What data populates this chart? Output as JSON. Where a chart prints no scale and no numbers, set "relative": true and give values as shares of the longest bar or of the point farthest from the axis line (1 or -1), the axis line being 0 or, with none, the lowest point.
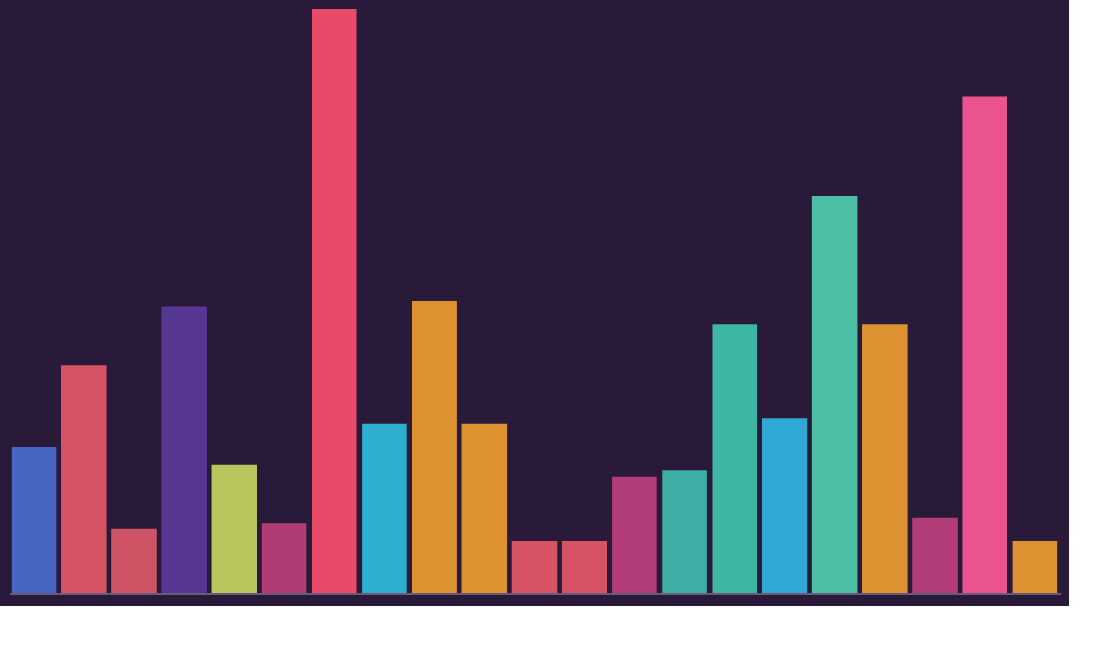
{
  "chart_data": {
    "type": "bar",
    "relative": true,
    "categories": [
      null,
      null,
      null,
      null,
      null,
      null,
      null,
      null,
      null,
      null,
      null,
      null,
      null,
      null,
      null,
      null,
      null,
      null,
      null,
      null,
      null
    ],
    "values": [
      0.25,
      0.39,
      0.11,
      0.49,
      0.22,
      0.12,
      1,
      0.29,
      0.5,
      0.29,
      0.09,
      0.09,
      0.2,
      0.21,
      0.46,
      0.3,
      0.68,
      0.46,
      0.13,
      0.85,
      0.09
    ],
    "colors": [
      "#4a6fd0",
      "#e85a6a",
      "#e05a6a",
      "#5a3a9a",
      "#c8d860",
      "#c0407a",
      "#ff5070",
      "#30c0e0",
      "#f0a030",
      "#f0a030",
      "#e85a6a",
      "#e85a6a",
      "#c04080",
      "#40c0b0",
      "#40c8b0",
      "#30b8e8",
      "#50d0b0",
      "#f0a030",
      "#c04080",
      "#ff5a9a",
      "#f0a030"
    ],
    "grid": false
  }
}
